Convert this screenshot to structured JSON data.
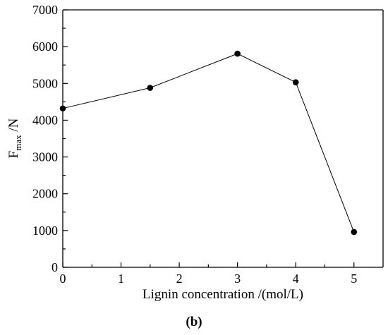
{
  "panel_label": "(b)",
  "chart_data": {
    "type": "line",
    "xlabel": "Lignin concentration /(mol/L)",
    "ylabel": "F",
    "ylabel_subscript": "max",
    "ylabel_unit": " /N",
    "xlim": [
      0,
      5.5
    ],
    "ylim": [
      0,
      7000
    ],
    "x_ticks": [
      0,
      1,
      2,
      3,
      4,
      5
    ],
    "x_tick_labels": [
      "0",
      "1",
      "2",
      "3",
      "4",
      "5"
    ],
    "y_ticks": [
      0,
      1000,
      2000,
      3000,
      4000,
      5000,
      6000,
      7000
    ],
    "y_tick_labels": [
      "0",
      "1000",
      "2000",
      "3000",
      "4000",
      "5000",
      "6000",
      "7000"
    ],
    "grid": false,
    "series": [
      {
        "x": [
          0,
          1.5,
          3,
          4,
          5
        ],
        "values": [
          4320,
          4880,
          5810,
          5030,
          960
        ],
        "color": "#000000",
        "marker": "circle"
      }
    ]
  }
}
